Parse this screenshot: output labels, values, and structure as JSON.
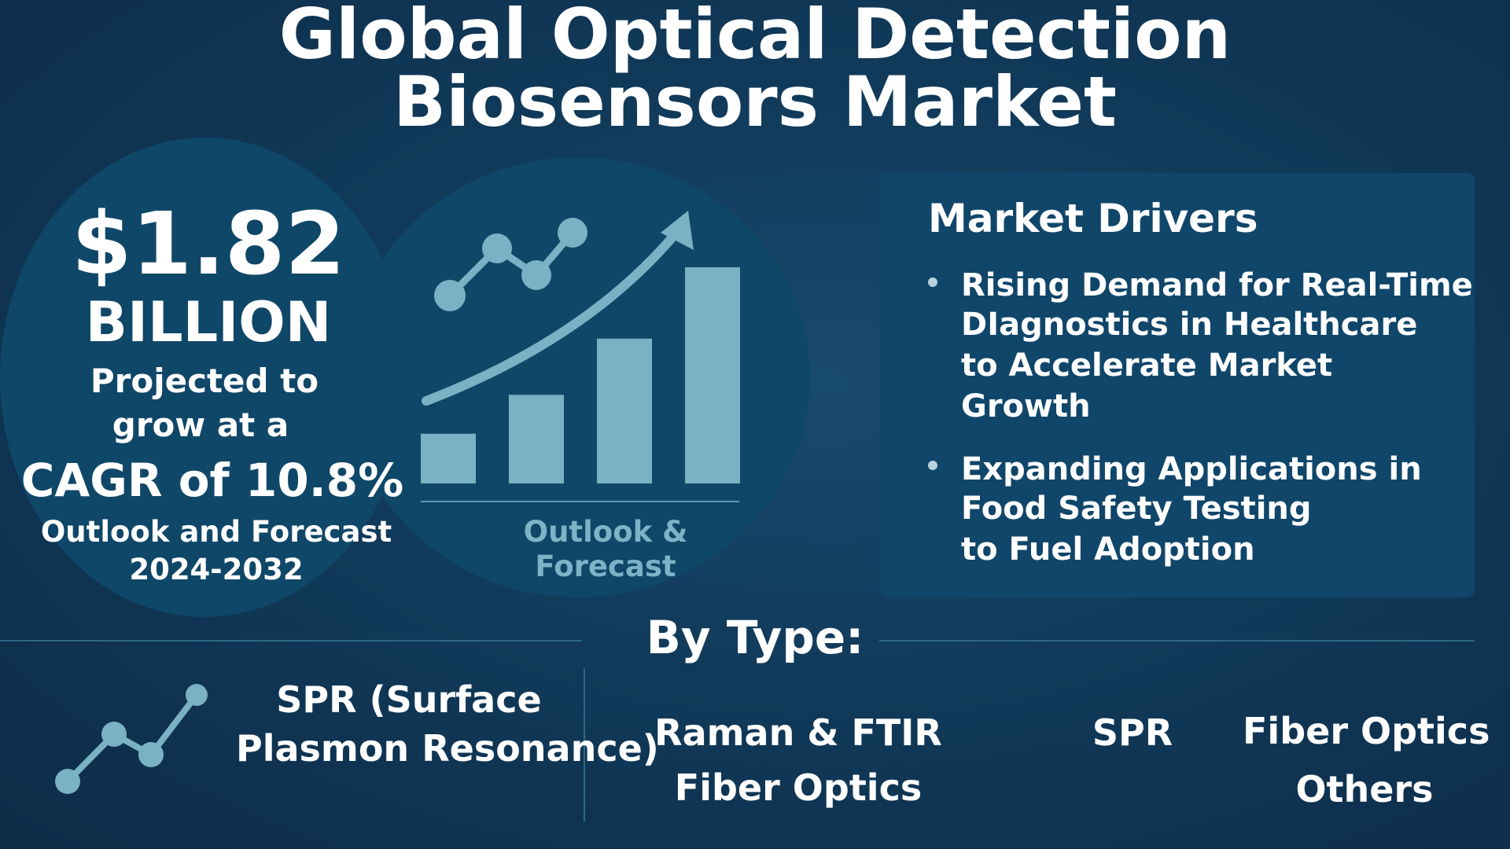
{
  "title": {
    "line1": "Global Optical Detection",
    "line2": "Biosensors Market"
  },
  "stats": {
    "value": "$1.82",
    "unit": "BILLION",
    "projected_line1": "Projected to",
    "projected_line2": "grow at a",
    "cagr": "CAGR of 10.8%",
    "outlook_line1": "Outlook and Forecast",
    "outlook_line2": "2024-2032"
  },
  "chart": {
    "caption": "Outlook & Forecast",
    "bar_color": "#7ab1c4",
    "bar_levels": [
      0.23,
      0.41,
      0.67,
      1.0
    ],
    "icon": "trend-arrow-icon"
  },
  "drivers": {
    "title": "Market Drivers",
    "items": [
      {
        "lines": [
          "Rising Demand for Real-Time",
          "DIagnostics in Healthcare",
          "to Accelerate Market",
          "Growth"
        ]
      },
      {
        "lines": [
          "Expanding Applications in",
          "Food Safety Testing",
          "to Fuel Adoption"
        ]
      }
    ]
  },
  "by_type": {
    "heading": "By Type:",
    "spr_full_line1": "SPR (Surface",
    "spr_full_line2": "Plasmon Resonance)",
    "raman_line1": "Raman & FTIR",
    "raman_line2": "Fiber Optics",
    "spr": "SPR",
    "fiber_optics": "Fiber Optics",
    "others": "Others",
    "icon": "line-graph-icon"
  },
  "colors": {
    "background": "#113a5a",
    "panel": "#10466a",
    "accent": "#7ab1c4"
  }
}
